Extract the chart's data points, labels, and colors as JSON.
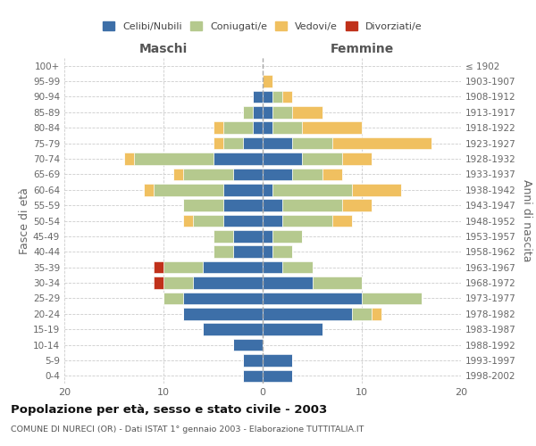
{
  "age_groups": [
    "0-4",
    "5-9",
    "10-14",
    "15-19",
    "20-24",
    "25-29",
    "30-34",
    "35-39",
    "40-44",
    "45-49",
    "50-54",
    "55-59",
    "60-64",
    "65-69",
    "70-74",
    "75-79",
    "80-84",
    "85-89",
    "90-94",
    "95-99",
    "100+"
  ],
  "birth_years": [
    "1998-2002",
    "1993-1997",
    "1988-1992",
    "1983-1987",
    "1978-1982",
    "1973-1977",
    "1968-1972",
    "1963-1967",
    "1958-1962",
    "1953-1957",
    "1948-1952",
    "1943-1947",
    "1938-1942",
    "1933-1937",
    "1928-1932",
    "1923-1927",
    "1918-1922",
    "1913-1917",
    "1908-1912",
    "1903-1907",
    "≤ 1902"
  ],
  "colors": {
    "celibi": "#3d6fa8",
    "coniugati": "#b5c98e",
    "vedovi": "#f0c060",
    "divorziati": "#c0311a"
  },
  "maschi": {
    "celibi": [
      2,
      2,
      3,
      6,
      8,
      8,
      7,
      6,
      3,
      3,
      4,
      4,
      4,
      3,
      5,
      2,
      1,
      1,
      1,
      0,
      0
    ],
    "coniugati": [
      0,
      0,
      0,
      0,
      0,
      2,
      3,
      4,
      2,
      2,
      3,
      4,
      7,
      5,
      8,
      2,
      3,
      1,
      0,
      0,
      0
    ],
    "vedovi": [
      0,
      0,
      0,
      0,
      0,
      0,
      0,
      0,
      0,
      0,
      1,
      0,
      1,
      1,
      1,
      1,
      1,
      0,
      0,
      0,
      0
    ],
    "divorziati": [
      0,
      0,
      0,
      0,
      0,
      0,
      1,
      1,
      0,
      0,
      0,
      0,
      0,
      0,
      0,
      0,
      0,
      0,
      0,
      0,
      0
    ]
  },
  "femmine": {
    "celibi": [
      3,
      3,
      0,
      6,
      9,
      10,
      5,
      2,
      1,
      1,
      2,
      2,
      1,
      3,
      4,
      3,
      1,
      1,
      1,
      0,
      0
    ],
    "coniugati": [
      0,
      0,
      0,
      0,
      2,
      6,
      5,
      3,
      2,
      3,
      5,
      6,
      8,
      3,
      4,
      4,
      3,
      2,
      1,
      0,
      0
    ],
    "vedovi": [
      0,
      0,
      0,
      0,
      1,
      0,
      0,
      0,
      0,
      0,
      2,
      3,
      5,
      2,
      3,
      10,
      6,
      3,
      1,
      1,
      0
    ],
    "divorziati": [
      0,
      0,
      0,
      0,
      0,
      0,
      0,
      0,
      0,
      0,
      0,
      0,
      0,
      0,
      0,
      0,
      0,
      0,
      0,
      0,
      0
    ]
  },
  "xlim": 20,
  "title": "Popolazione per età, sesso e stato civile - 2003",
  "subtitle": "COMUNE DI NURECI (OR) - Dati ISTAT 1° gennaio 2003 - Elaborazione TUTTITALIA.IT",
  "ylabel_left": "Fasce di età",
  "ylabel_right": "Anni di nascita",
  "xlabel_left": "Maschi",
  "xlabel_right": "Femmine",
  "bg_color": "#ffffff",
  "grid_color": "#cccccc"
}
